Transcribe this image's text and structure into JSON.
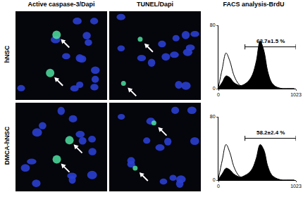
{
  "figure": {
    "column_titles": [
      "Active caspase-3/Dapi",
      "TUNEL/Dapi",
      "FACS analysis-BrdU"
    ],
    "row_labels": [
      "hNSC",
      "DMCA-hNSC"
    ]
  },
  "chart_data": [
    {
      "type": "area",
      "grid": false,
      "tick_labels": true,
      "x": [
        0,
        50,
        100,
        150,
        200,
        250,
        300,
        350,
        400,
        450,
        500,
        550,
        600,
        650,
        700,
        750,
        800,
        850,
        900,
        950,
        1000
      ],
      "series": [
        {
          "type": "line",
          "color": "#000000",
          "values": [
            2,
            25,
            45,
            35,
            18,
            8,
            3,
            1,
            0,
            0,
            0,
            0,
            0,
            0,
            0,
            0,
            0,
            0,
            0,
            0,
            0
          ]
        },
        {
          "type": "area",
          "color": "#000000",
          "values": [
            1,
            8,
            16,
            14,
            8,
            5,
            4,
            6,
            10,
            18,
            35,
            60,
            48,
            22,
            8,
            3,
            1,
            0,
            0,
            0,
            0
          ]
        }
      ],
      "xlim": [
        0,
        1023
      ],
      "xticks": [
        0,
        1023
      ],
      "ylim": [
        0,
        80
      ],
      "yticks": [
        0,
        80
      ],
      "gate": [
        350,
        1023
      ],
      "annotation": "63.7±1.5 %"
    },
    {
      "type": "area",
      "grid": false,
      "tick_labels": true,
      "x": [
        0,
        50,
        100,
        150,
        200,
        250,
        300,
        350,
        400,
        450,
        500,
        550,
        600,
        650,
        700,
        750,
        800,
        850,
        900,
        950,
        1000
      ],
      "series": [
        {
          "type": "line",
          "color": "#000000",
          "values": [
            2,
            25,
            45,
            35,
            18,
            8,
            3,
            1,
            0,
            0,
            0,
            0,
            0,
            0,
            0,
            0,
            0,
            0,
            0,
            0,
            0
          ]
        },
        {
          "type": "area",
          "color": "#000000",
          "values": [
            1,
            8,
            15,
            13,
            8,
            5,
            4,
            6,
            9,
            15,
            28,
            45,
            38,
            18,
            7,
            3,
            1,
            0,
            0,
            0,
            0
          ]
        }
      ],
      "xlim": [
        0,
        1023
      ],
      "xticks": [
        0,
        1023
      ],
      "ylim": [
        0,
        80
      ],
      "yticks": [
        0,
        80
      ],
      "gate": [
        350,
        1023
      ],
      "annotation": "58.2±2.4 %"
    }
  ]
}
